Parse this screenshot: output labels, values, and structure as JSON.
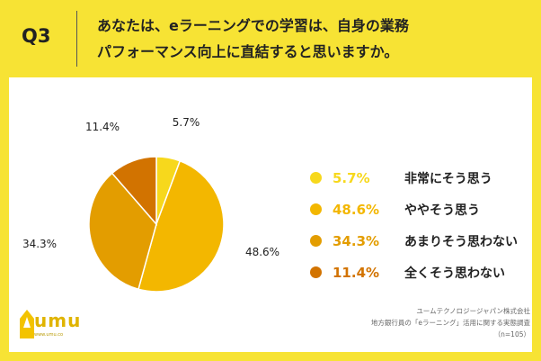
{
  "header": {
    "q_label": "Q3",
    "question_line1": "あなたは、eラーニングでの学習は、自身の業務",
    "question_line2": "パフォーマンス向上に直結すると思いますか。"
  },
  "chart_data": {
    "type": "pie",
    "title": "",
    "start": "top, clockwise",
    "slices": [
      {
        "label": "非常にそう思う",
        "value": 5.7,
        "display": "5.7%",
        "color": "#f7d81c"
      },
      {
        "label": "ややそう思う",
        "value": 48.6,
        "display": "48.6%",
        "color": "#f3b700"
      },
      {
        "label": "あまりそう思わない",
        "value": 34.3,
        "display": "34.3%",
        "color": "#e39d00"
      },
      {
        "label": "全くそう思わない",
        "value": 11.4,
        "display": "11.4%",
        "color": "#d27300"
      }
    ],
    "legend_placement": "right"
  },
  "logo": {
    "text": "umu",
    "url": "www.umu.co"
  },
  "source": {
    "line1": "ユームテクノロジージャパン株式会社",
    "line2": "地方銀行員の「eラーニング」活用に関する実態調査",
    "line3": "（n=105）"
  }
}
